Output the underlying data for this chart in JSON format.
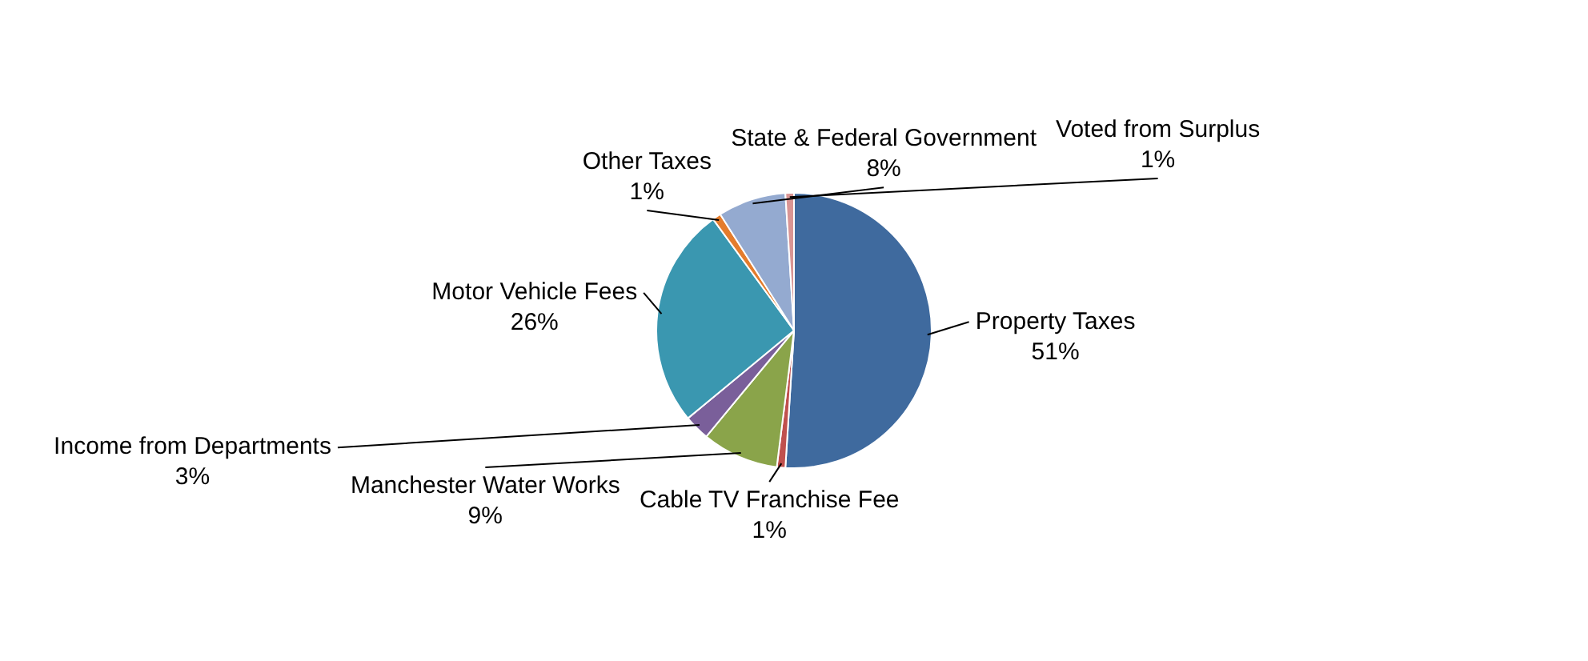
{
  "chart_data": {
    "type": "pie",
    "categories": [
      "Property Taxes",
      "Cable TV Franchise Fee",
      "Manchester Water Works",
      "Income from Departments",
      "Motor Vehicle Fees",
      "Other Taxes",
      "State & Federal Government",
      "Voted from Surplus"
    ],
    "values": [
      51,
      1,
      9,
      3,
      26,
      1,
      8,
      1
    ],
    "colors": [
      "#3f6a9e",
      "#c0504d",
      "#8aa44a",
      "#7a5f9a",
      "#3a97b0",
      "#e47c2c",
      "#94aad0",
      "#d99594"
    ],
    "value_labels": [
      "51%",
      "1%",
      "9%",
      "3%",
      "26%",
      "1%",
      "8%",
      "1%"
    ],
    "legend": false
  }
}
